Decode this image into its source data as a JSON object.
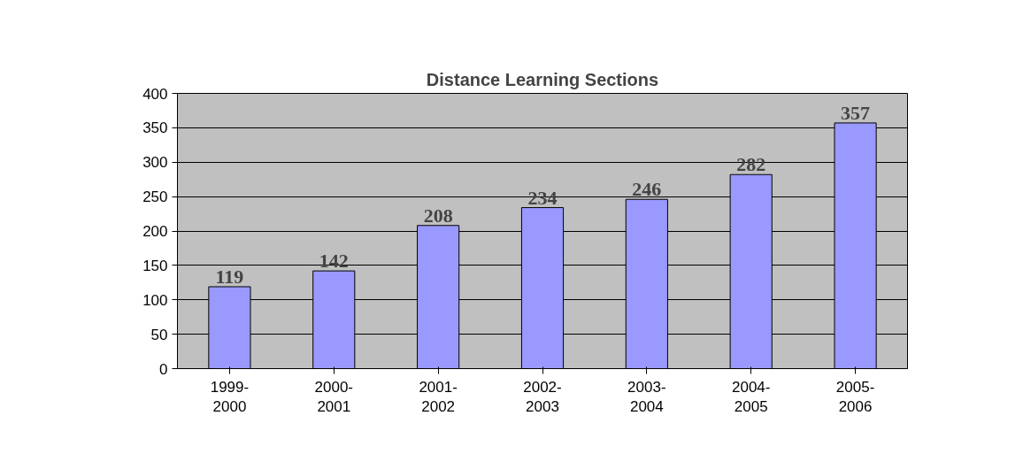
{
  "chart_data": {
    "type": "bar",
    "title": "Distance Learning Sections",
    "categories": [
      "1999-2000",
      "2000-2001",
      "2001-2002",
      "2002-2003",
      "2003-2004",
      "2004-2005",
      "2005-2006"
    ],
    "values": [
      119,
      142,
      208,
      234,
      246,
      282,
      357
    ],
    "color": "#9999ff",
    "ylim": [
      0,
      400
    ],
    "yticks": [
      0,
      50,
      100,
      150,
      200,
      250,
      300,
      350,
      400
    ],
    "grid": "y",
    "data_labels": true
  }
}
